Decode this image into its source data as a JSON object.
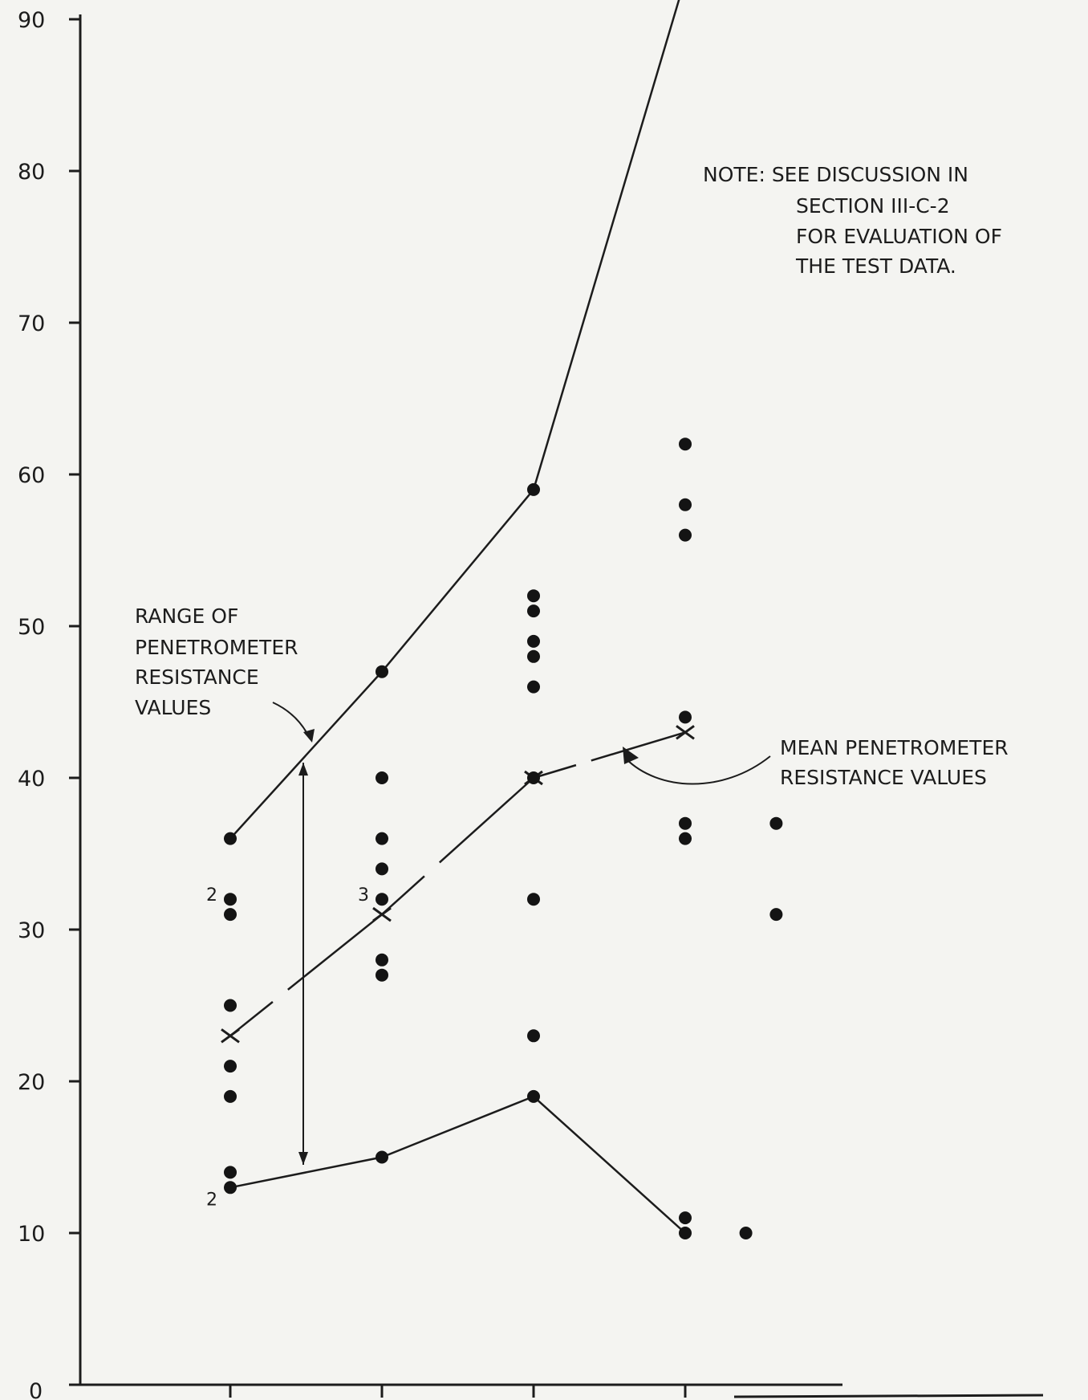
{
  "chart_data": {
    "type": "scatter",
    "title": "",
    "xlabel": "",
    "ylabel": "",
    "ylim": [
      0,
      90
    ],
    "x_ticks": [
      1,
      2,
      3,
      4
    ],
    "y_ticks": [
      0,
      10,
      20,
      30,
      40,
      50,
      60,
      70,
      80,
      90
    ],
    "grid": false,
    "points": [
      {
        "x": 1,
        "y": 36
      },
      {
        "x": 1,
        "y": 32
      },
      {
        "x": 1,
        "y": 31
      },
      {
        "x": 1,
        "y": 25
      },
      {
        "x": 1,
        "y": 21
      },
      {
        "x": 1,
        "y": 19
      },
      {
        "x": 1,
        "y": 14
      },
      {
        "x": 1,
        "y": 13
      },
      {
        "x": 2,
        "y": 47
      },
      {
        "x": 2,
        "y": 40
      },
      {
        "x": 2,
        "y": 36
      },
      {
        "x": 2,
        "y": 34
      },
      {
        "x": 2,
        "y": 32
      },
      {
        "x": 2,
        "y": 28
      },
      {
        "x": 2,
        "y": 27
      },
      {
        "x": 2,
        "y": 15
      },
      {
        "x": 3,
        "y": 59
      },
      {
        "x": 3,
        "y": 52
      },
      {
        "x": 3,
        "y": 51
      },
      {
        "x": 3,
        "y": 49
      },
      {
        "x": 3,
        "y": 48
      },
      {
        "x": 3,
        "y": 46
      },
      {
        "x": 3,
        "y": 40
      },
      {
        "x": 3,
        "y": 32
      },
      {
        "x": 3,
        "y": 23
      },
      {
        "x": 3,
        "y": 19
      },
      {
        "x": 4,
        "y": 62
      },
      {
        "x": 4,
        "y": 58
      },
      {
        "x": 4,
        "y": 56
      },
      {
        "x": 4,
        "y": 44
      },
      {
        "x": 4,
        "y": 37
      },
      {
        "x": 4,
        "y": 36
      },
      {
        "x": 4,
        "y": 11
      },
      {
        "x": 4,
        "y": 10
      },
      {
        "x": 4.4,
        "y": 10
      },
      {
        "x": 4.6,
        "y": 37
      },
      {
        "x": 4.6,
        "y": 31
      }
    ],
    "point_counts": [
      {
        "x": 1,
        "y": 32,
        "label": "2"
      },
      {
        "x": 2,
        "y": 32,
        "label": "3"
      },
      {
        "x": 1,
        "y": 13,
        "label": "2"
      }
    ],
    "series": [
      {
        "role": "range-upper",
        "x": [
          1,
          2,
          3,
          3.98
        ],
        "y": [
          36,
          47,
          59,
          92
        ]
      },
      {
        "role": "range-lower",
        "x": [
          1,
          2,
          3,
          4
        ],
        "y": [
          13,
          15,
          19,
          10
        ]
      },
      {
        "role": "mean",
        "x": [
          1,
          2,
          3,
          4
        ],
        "y": [
          23,
          31,
          40,
          43
        ]
      }
    ],
    "annotations": {
      "note": [
        "NOTE: SEE DISCUSSION IN",
        "SECTION III-C-2",
        "FOR EVALUATION OF",
        "THE TEST DATA."
      ],
      "range_label": [
        "RANGE OF",
        "PENETROMETER",
        "RESISTANCE",
        "VALUES"
      ],
      "mean_label": [
        "MEAN PENETROMETER",
        "RESISTANCE VALUES"
      ]
    }
  }
}
